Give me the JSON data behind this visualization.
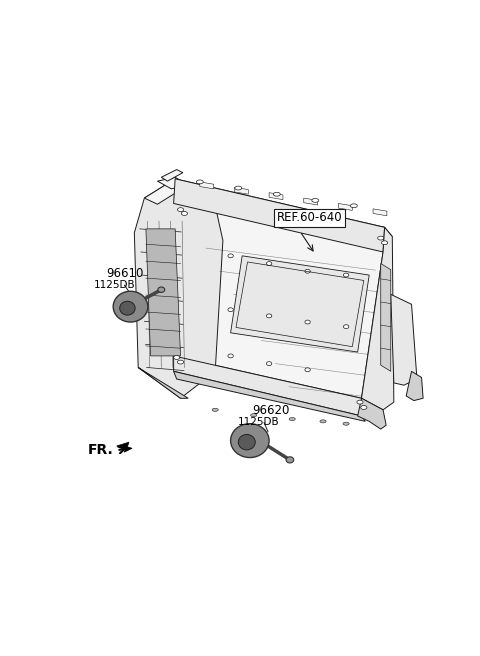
{
  "background_color": "#ffffff",
  "fig_width": 4.8,
  "fig_height": 6.56,
  "dpi": 100,
  "line_color": "#1a1a1a",
  "fill_light": "#f5f5f5",
  "fill_mid": "#e8e8e8",
  "fill_dark": "#d0d0d0",
  "fill_darker": "#b8b8b8",
  "horn_body": "#8a8a8a",
  "horn_face": "#5a5a5a",
  "text_color": "#000000",
  "ref_label": "REF.60-640",
  "part1_num": "96610",
  "part1_db": "1125DB",
  "part2_num": "96620",
  "part2_db": "1125DB",
  "fr_label": "FR."
}
